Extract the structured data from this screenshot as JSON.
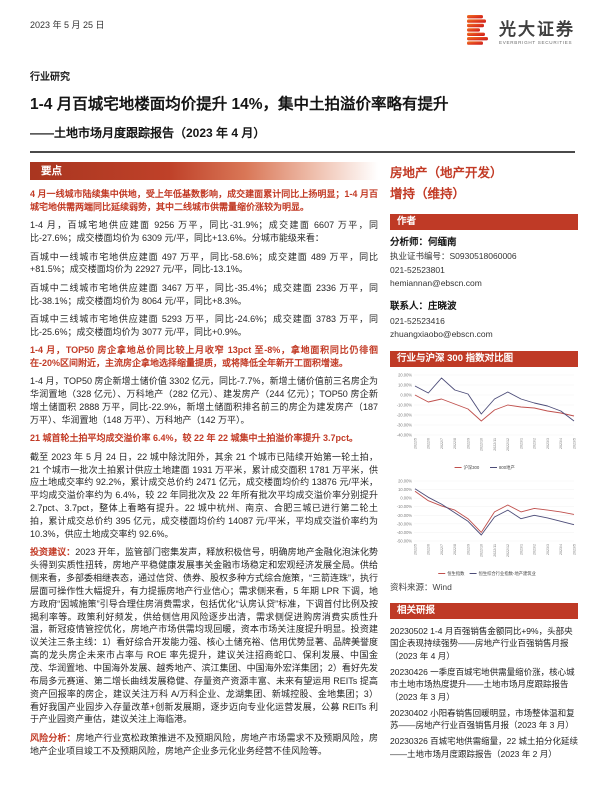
{
  "page": {
    "date": "2023 年 5 月 25 日",
    "category": "行业研究",
    "title": "1-4 月百城宅地楼面均价提升 14%，集中土拍溢价率略有提升",
    "subtitle": "——土地市场月度跟踪报告（2023 年 4 月）"
  },
  "brand": {
    "name_cn": "光大证券",
    "name_en": "EVERBRIGHT SECURITIES"
  },
  "colors": {
    "accent": "#bf3a26",
    "chart_red": "#c0504d",
    "chart_navy": "#4c4c78"
  },
  "key_points": {
    "banner": "要点",
    "paragraphs": [
      {
        "style": "red",
        "text": "4 月一线城市陆续集中供地，受上年低基数影响，成交建面累计同比上扬明显；1-4 月百城宅地供需两端同比延续弱势，其中二线城市供需量缩价涨较为明显。"
      },
      {
        "style": "body",
        "text": "1-4 月，百城宅地供应建面 9256 万平，同比-31.9%；成交建面 6607 万平，同比-27.6%；成交楼面均价为 6309 元/平，同比+13.6%。分城市能级来看："
      },
      {
        "style": "body",
        "text": "百城中一线城市宅地供应建面 497 万平，同比-58.6%；成交建面 489 万平，同比+81.5%；成交楼面均价为 22927 元/平，同比-13.1%。"
      },
      {
        "style": "body",
        "text": "百城中二线城市宅地供应建面 3467 万平，同比-35.4%；成交建面 2336 万平，同比-38.1%；成交楼面均价为 8064 元/平，同比+8.3%。"
      },
      {
        "style": "body",
        "text": "百城中三线城市宅地供应建面 5293 万平，同比-24.6%；成交建面 3783 万平，同比-25.6%；成交楼面均价为 3077 元/平，同比+0.9%。"
      },
      {
        "style": "red",
        "text": "1-4 月，TOP50 房企拿地总价同比较上月收窄 13pct 至-8%，拿地面积同比仍徘徊在-20%区间附近，主流房企拿地选择缩量提质，或将降低全年新开工面积增速。"
      },
      {
        "style": "body",
        "text": "1-4 月，TOP50 房企新增土储价值 3302 亿元，同比-7.7%，新增土储价值前三名房企为华润置地（328 亿元）、万科地产（282 亿元）、建发房产（244 亿元）；TOP50 房企新增土储面积 2888 万平，同比-22.9%，新增土储面积排名前三的房企为建发房产（187 万平）、华润置地（148 万平）、万科地产（142 万平）。"
      },
      {
        "style": "red",
        "text": "21 城首轮土拍平均成交溢价率 6.4%，较 22 年 22 城集中土拍溢价率提升 3.7pct。"
      },
      {
        "style": "body",
        "text": "截至 2023 年 5 月 24 日，22 城中除沈阳外，其余 21 个城市已陆续开始第一轮土拍，21 个城市一批次土拍累计供应土地建面 1931 万平米，累计成交面积 1781 万平米，供应土地成交率约 92.2%，累计成交总价约 2471 亿元，成交楼面均价约 13876 元/平米，平均成交溢价率约为 6.4%，较 22 年同批次及 22 年所有批次平均成交溢价率分别提升 2.7pct、3.7pct，整体上看略有提升。22 城中杭州、南京、合肥三城已进行第二轮土拍，累计成交总价约 395 亿元，成交楼面均价约 14087 元/平米，平均成交溢价率约为 10.3%，供应土地成交率约 92.6%。"
      },
      {
        "style": "body",
        "label": "投资建议：",
        "text": "2023 开年，监管部门密集发声，释放积极信号，明确房地产金融化泡沫化势头得到实质性扭转，房地产平稳健康发展事关金融市场稳定和宏观经济发展全局。供给侧来看，多部委相继表态，通过信贷、债券、股权多种方式综合施策，“三箭连珠”，执行层面可操作性大幅提升，有力提振房地产行业信心；需求侧来看，5 年期 LPR 下调，地方政府“因城施策”引导合理住房消费需求，包括优化“认房认贷”标准，下调首付比例及按揭利率等。政策利好频发，供给侧信用风险逐步出清，需求侧促进购房消费实质性升温，新冠疫情管控优化，房地产市场供需均现回暖，资本市场关注度提升明显。投资建议关注三条主线：1）看好综合开发能力强、核心土储充裕、信用优势显著、品牌美誉度高的龙头房企未来市占率与 ROE 率先提升，建议关注招商蛇口、保利发展、中国金茂、华润置地、中国海外发展、越秀地产、滨江集团、中国海外宏洋集团；2）看好先发布局多元赛道、第二增长曲线发展稳健、存量资产资源丰富、未来有望运用 REITs 提高资产回报率的房企，建议关注万科 A/万科企业、龙湖集团、新城控股、金地集团；3）看好我国产业园步入存量改革+创新发展期，逐步迈向专业化运营发展，公募 REITs 利于产业园资产重估，建议关注上海临港。"
      },
      {
        "style": "body",
        "label": "风险分析：",
        "text": "房地产行业宽松政策推进不及预期风险，房地产市场需求不及预期风险，房地产企业项目竣工不及预期风险，房地产企业多元化业务经营不佳风险等。"
      }
    ]
  },
  "sidebar": {
    "industry": "房地产（地产开发）",
    "rating": "增持（维持）",
    "author_banner": "作者",
    "analyst_label": "分析师：",
    "analyst_name": "何缅南",
    "cert": "执业证书编号：S0930518060006",
    "analyst_phone": "021-52523801",
    "analyst_email": "hemiannan@ebscn.com",
    "contact_label": "联系人：",
    "contact_name": "庄晓波",
    "contact_phone": "021-52523416",
    "contact_email": "zhuangxiaobo@ebscn.com",
    "chart_banner": "行业与沪深 300 指数对比图",
    "source": "资料来源：Wind",
    "related_banner": "相关研报",
    "reports": [
      "20230502 1-4 月百强销售金额同比+9%，头部央国企表现持续强势——房地产行业百强销售月报（2023 年 4 月）",
      "20230426 一季度百城宅地供需量缩价涨，核心城市土地市场热度提升——土地市场月度跟踪报告（2023 年 3 月）",
      "20230402 小阳春销售回暖明显，市场整体温和复苏——房地产行业百强销售月报（2023 年 3 月）",
      "20230326 百城宅地供需缩量，22 城土拍分化延续——土地市场月度跟踪报告（2023 年 2 月）"
    ]
  },
  "chart_data": [
    {
      "type": "line",
      "title": "行业与沪深 300 指数对比图（A股）",
      "x": [
        "2022/5",
        "2022/6",
        "2022/7",
        "2022/8",
        "2022/9",
        "2022/10",
        "2022/11",
        "2022/12",
        "2023/1",
        "2023/2",
        "2023/3",
        "2023/4",
        "2023/5"
      ],
      "series": [
        {
          "name": "沪深300",
          "color": "#c0504d",
          "values": [
            0,
            -7,
            -4,
            -9,
            -14,
            -26,
            -15,
            -10,
            -12,
            -13,
            -16,
            -18,
            -21
          ]
        },
        {
          "name": "800地产",
          "color": "#4c4c78",
          "values": [
            9,
            2,
            17,
            5,
            1,
            -19,
            -4,
            3,
            -4,
            -8,
            -11,
            -16,
            -26
          ]
        }
      ],
      "ylim": [
        -40,
        20
      ],
      "ytick_step": 10,
      "ytick_format": "percent",
      "grid": "horizontal-light",
      "legend_position": "bottom"
    },
    {
      "type": "line",
      "title": "行业与恒生指数对比图（H股）",
      "x": [
        "2022/5",
        "2022/6",
        "2022/7",
        "2022/8",
        "2022/9",
        "2022/10",
        "2022/11",
        "2022/12",
        "2023/1",
        "2023/2",
        "2023/3",
        "2023/4",
        "2023/5"
      ],
      "series": [
        {
          "name": "恒生指数",
          "color": "#c0504d",
          "values": [
            8,
            -3,
            -9,
            -14,
            -24,
            -40,
            -16,
            -8,
            -16,
            -12,
            -14,
            -16,
            -19
          ]
        },
        {
          "name": "恒生综合行业指数-地产建筑业",
          "color": "#4c4c78",
          "values": [
            11,
            1,
            -7,
            -17,
            -27,
            -43,
            -22,
            -14,
            -24,
            -20,
            -23,
            -27,
            -31
          ]
        }
      ],
      "ylim": [
        -50,
        20
      ],
      "ytick_step": 10,
      "ytick_format": "percent",
      "grid": "horizontal-light",
      "legend_position": "bottom"
    }
  ]
}
